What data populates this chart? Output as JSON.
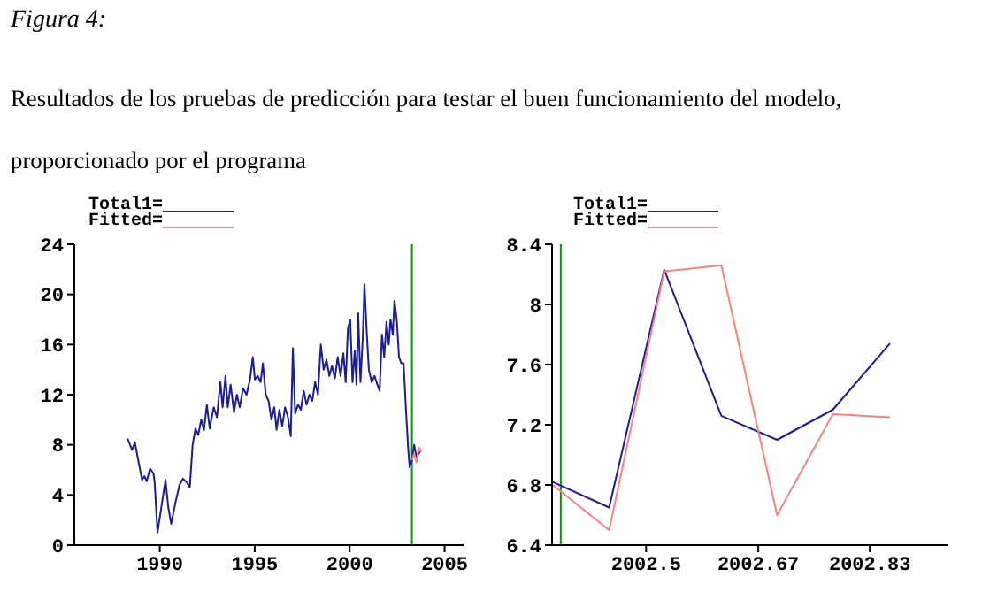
{
  "chart_data": [
    {
      "type": "line",
      "title": "Figura 4:",
      "subtitle": "Resultados de los pruebas de predicción para testar el buen funcionamiento del modelo, proporcionado por el programa",
      "xlim": [
        1985.5,
        2006
      ],
      "xticks": [
        1990,
        1995,
        2000,
        2005
      ],
      "ylim": [
        0,
        24
      ],
      "yticks": [
        0,
        4,
        8,
        12,
        16,
        20,
        24
      ],
      "grid": false,
      "legend": "top left",
      "series": [
        {
          "name": "Total1=",
          "color": "#1c1c96",
          "x": [
            1988.3,
            1988.54,
            1988.69,
            1988.9,
            1989.07,
            1989.19,
            1989.31,
            1989.49,
            1989.67,
            1989.73,
            1989.88,
            1990.06,
            1990.3,
            1990.45,
            1990.6,
            1990.84,
            1991.04,
            1991.22,
            1991.43,
            1991.58,
            1991.73,
            1991.88,
            1992.03,
            1992.18,
            1992.33,
            1992.48,
            1992.63,
            1992.84,
            1993.01,
            1993.19,
            1993.31,
            1993.46,
            1993.58,
            1993.73,
            1993.91,
            1994.06,
            1994.21,
            1994.39,
            1994.57,
            1994.75,
            1994.9,
            1995.01,
            1995.16,
            1995.31,
            1995.43,
            1995.58,
            1995.73,
            1995.88,
            1996.03,
            1996.15,
            1996.3,
            1996.45,
            1996.6,
            1996.75,
            1996.9,
            1997.01,
            1997.13,
            1997.28,
            1997.43,
            1997.58,
            1997.73,
            1997.88,
            1998.03,
            1998.18,
            1998.33,
            1998.48,
            1998.63,
            1998.78,
            1998.93,
            1999.07,
            1999.22,
            1999.37,
            1999.52,
            1999.67,
            1999.79,
            1999.91,
            2000.03,
            2000.15,
            2000.27,
            2000.36,
            2000.45,
            2000.57,
            2000.69,
            2000.78,
            2000.9,
            2001.01,
            2001.16,
            2001.31,
            2001.46,
            2001.58,
            2001.7,
            2001.82,
            2001.94,
            2002.06,
            2002.15,
            2002.27,
            2002.36,
            2002.48,
            2002.6,
            2002.72,
            2002.84,
            2002.96,
            2003.07,
            2003.16,
            2003.28,
            2003.4,
            2003.52,
            2003.64,
            2003.76
          ],
          "values": [
            8.5,
            7.6,
            8.2,
            6.5,
            5.2,
            5.5,
            5.1,
            6.1,
            5.7,
            5,
            1,
            2.8,
            5.2,
            3,
            1.7,
            3.5,
            4.8,
            5.3,
            5,
            4.6,
            8,
            9.3,
            8.8,
            10,
            9.2,
            11.2,
            9.3,
            11,
            10.2,
            13,
            11,
            13.5,
            11,
            12.8,
            10.6,
            12,
            11,
            12.5,
            12,
            13.2,
            15,
            13.2,
            13.5,
            13,
            14.5,
            12,
            11.5,
            10,
            11,
            9.2,
            10.8,
            9.5,
            11,
            10.2,
            8.7,
            15.7,
            10.5,
            11.2,
            10.8,
            12.3,
            11.2,
            12,
            11.5,
            13,
            12,
            16,
            14,
            14.8,
            13.5,
            14.3,
            13.3,
            15,
            13.5,
            15.3,
            13,
            17.3,
            18,
            13,
            15.5,
            12.8,
            18.5,
            13,
            16.5,
            20.8,
            17,
            14,
            13,
            13.5,
            12.8,
            12.3,
            16.8,
            15,
            17.8,
            16,
            18,
            16.8,
            19.5,
            18,
            15,
            14.5,
            14.5,
            11,
            8,
            6.2,
            6.8,
            8,
            7,
            7.3,
            7.6
          ]
        },
        {
          "name": "Fitted=",
          "color": "#ff7f7f",
          "x": [
            2003.28,
            2003.4,
            2003.52,
            2003.64,
            2003.76
          ],
          "values": [
            6.8,
            7.3,
            6.6,
            7.8,
            7.4
          ]
        }
      ],
      "ref_lines": [
        {
          "axis": "x",
          "value": 2003.28,
          "color": "#00a000"
        }
      ]
    },
    {
      "type": "line",
      "xlim": [
        2002.36,
        2002.95
      ],
      "xticks": [
        {
          "value": 2002.5,
          "label": "2002.5"
        },
        {
          "value": 2002.667,
          "label": "2002.67"
        },
        {
          "value": 2002.833,
          "label": "2002.83"
        }
      ],
      "ylim": [
        6.4,
        8.4
      ],
      "yticks": [
        6.4,
        6.8,
        7.2,
        7.6,
        8,
        8.4
      ],
      "grid": false,
      "legend": "top left",
      "series": [
        {
          "name": "Total1=",
          "color": "#1c1c96",
          "x": [
            2002.361,
            2002.445,
            2002.527,
            2002.612,
            2002.695,
            2002.778,
            2002.863
          ],
          "values": [
            6.82,
            6.65,
            8.23,
            7.26,
            7.1,
            7.3,
            7.74
          ]
        },
        {
          "name": "Fitted=",
          "color": "#ff7f7f",
          "x": [
            2002.361,
            2002.445,
            2002.527,
            2002.612,
            2002.695,
            2002.778,
            2002.863
          ],
          "values": [
            6.8,
            6.5,
            8.22,
            8.26,
            6.6,
            7.27,
            7.25
          ]
        }
      ],
      "ref_lines": [
        {
          "axis": "x",
          "value": 2002.373,
          "color": "#00a000"
        }
      ]
    }
  ]
}
